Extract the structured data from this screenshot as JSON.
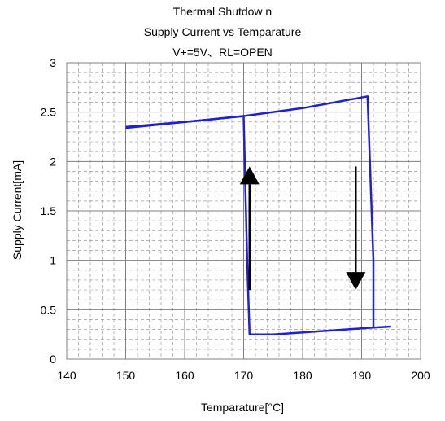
{
  "chart_data": {
    "type": "line",
    "title": [
      "Thermal Shutdow n",
      "Supply Current vs Temparature",
      "V+=5V、RL=OPEN"
    ],
    "xlabel": "Temparature[°C]",
    "ylabel": "Supply Current[mA]",
    "xlim": [
      140,
      200
    ],
    "ylim": [
      0,
      3
    ],
    "x_ticks": [
      "140",
      "150",
      "160",
      "170",
      "180",
      "190",
      "200"
    ],
    "y_ticks": [
      "0",
      "0.5",
      "1",
      "1.5",
      "2",
      "2.5",
      "3"
    ],
    "grid": "major solid, minor dashed",
    "series": [
      {
        "color": "#1f1fd6",
        "x": [
          150,
          160,
          170,
          180,
          191,
          192,
          192,
          195
        ],
        "y": [
          2.35,
          2.4,
          2.46,
          2.54,
          2.66,
          1.0,
          0.32,
          0.33
        ]
      },
      {
        "color": "#1f1fd6",
        "x": [
          150,
          160,
          170,
          170.6,
          171,
          175,
          185,
          192
        ],
        "y": [
          2.34,
          2.4,
          2.46,
          1.0,
          0.25,
          0.25,
          0.29,
          0.32
        ]
      }
    ],
    "annotations": [
      {
        "type": "arrow",
        "direction": "up",
        "x": 171,
        "y_from": 0.7,
        "y_to": 1.95,
        "color": "#000000"
      },
      {
        "type": "arrow",
        "direction": "down",
        "x": 189,
        "y_from": 1.95,
        "y_to": 0.7,
        "color": "#000000"
      }
    ]
  }
}
